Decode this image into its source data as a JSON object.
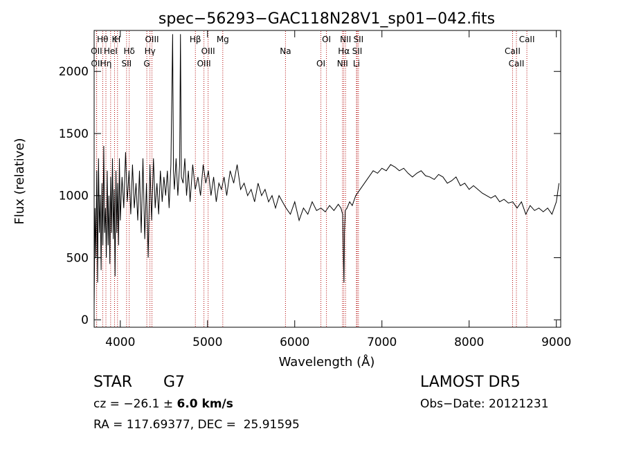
{
  "chart_data": {
    "type": "line",
    "title": "spec−56293−GAC118N28V1_sp01−042.fits",
    "xlabel": "Wavelength (Å)",
    "ylabel": "Flux (relative)",
    "xlim": [
      3700,
      9050
    ],
    "ylim": [
      -60,
      2330
    ],
    "xticks": [
      4000,
      5000,
      6000,
      7000,
      8000,
      9000
    ],
    "yticks": [
      0,
      500,
      1000,
      1500,
      2000
    ],
    "grid": false,
    "series": [
      {
        "x": [
          3700,
          3710,
          3720,
          3730,
          3740,
          3750,
          3760,
          3770,
          3780,
          3790,
          3800,
          3810,
          3820,
          3830,
          3840,
          3850,
          3860,
          3870,
          3880,
          3890,
          3900,
          3910,
          3920,
          3930,
          3940,
          3950,
          3960,
          3970,
          3980,
          3990,
          4000,
          4020,
          4040,
          4060,
          4080,
          4100,
          4120,
          4140,
          4160,
          4180,
          4200,
          4220,
          4240,
          4260,
          4280,
          4300,
          4320,
          4340,
          4360,
          4380,
          4400,
          4420,
          4440,
          4460,
          4480,
          4500,
          4520,
          4540,
          4560,
          4580,
          4600,
          4610,
          4620,
          4640,
          4660,
          4680,
          4690,
          4700,
          4720,
          4740,
          4760,
          4780,
          4800,
          4830,
          4860,
          4890,
          4920,
          4950,
          4980,
          5010,
          5040,
          5070,
          5100,
          5130,
          5160,
          5190,
          5220,
          5260,
          5300,
          5340,
          5380,
          5420,
          5460,
          5500,
          5540,
          5580,
          5620,
          5660,
          5700,
          5740,
          5780,
          5820,
          5860,
          5900,
          5950,
          6000,
          6050,
          6100,
          6150,
          6200,
          6250,
          6300,
          6350,
          6400,
          6450,
          6500,
          6530,
          6550,
          6560,
          6565,
          6570,
          6580,
          6600,
          6630,
          6660,
          6700,
          6750,
          6800,
          6850,
          6900,
          6950,
          7000,
          7050,
          7100,
          7150,
          7200,
          7250,
          7300,
          7350,
          7400,
          7450,
          7500,
          7550,
          7600,
          7650,
          7700,
          7750,
          7800,
          7850,
          7900,
          7950,
          8000,
          8050,
          8100,
          8150,
          8200,
          8250,
          8300,
          8350,
          8400,
          8450,
          8500,
          8550,
          8600,
          8650,
          8700,
          8750,
          8800,
          8850,
          8900,
          8950,
          9000,
          9030
        ],
        "y": [
          100,
          900,
          500,
          1200,
          300,
          1300,
          700,
          1000,
          400,
          1100,
          600,
          1400,
          700,
          900,
          500,
          1200,
          600,
          1000,
          450,
          1150,
          700,
          1300,
          650,
          1050,
          350,
          1200,
          700,
          1100,
          600,
          1300,
          800,
          1150,
          900,
          1350,
          950,
          1200,
          850,
          1250,
          900,
          1100,
          800,
          1200,
          700,
          1300,
          650,
          1100,
          500,
          1250,
          800,
          1300,
          900,
          1100,
          850,
          1200,
          950,
          1150,
          1000,
          1200,
          900,
          1250,
          2300,
          1200,
          1050,
          1300,
          1000,
          1250,
          2300,
          1150,
          1100,
          1300,
          1000,
          1200,
          950,
          1250,
          1050,
          1150,
          1000,
          1250,
          1100,
          1200,
          1000,
          1150,
          950,
          1100,
          1050,
          1150,
          1000,
          1200,
          1100,
          1250,
          1050,
          1100,
          1000,
          1050,
          950,
          1100,
          1000,
          1050,
          950,
          1000,
          900,
          1000,
          950,
          900,
          850,
          950,
          800,
          900,
          850,
          950,
          880,
          900,
          870,
          920,
          880,
          930,
          900,
          850,
          450,
          300,
          700,
          880,
          900,
          950,
          920,
          1000,
          1050,
          1100,
          1150,
          1200,
          1180,
          1220,
          1200,
          1250,
          1230,
          1200,
          1220,
          1180,
          1150,
          1180,
          1200,
          1160,
          1150,
          1130,
          1170,
          1150,
          1100,
          1120,
          1150,
          1080,
          1100,
          1050,
          1080,
          1050,
          1020,
          1000,
          980,
          1000,
          950,
          970,
          940,
          950,
          900,
          950,
          850,
          920,
          880,
          900,
          870,
          900,
          850,
          950,
          1100
        ]
      }
    ],
    "lines": [
      {
        "label": "Hθ",
        "x": 3798
      },
      {
        "label": "OII",
        "x": 3727
      },
      {
        "label": "OII",
        "x": 3729
      },
      {
        "label": "K",
        "x": 3934
      },
      {
        "label": "HeI",
        "x": 3889
      },
      {
        "label": "Hη",
        "x": 3835
      },
      {
        "label": "H",
        "x": 3968
      },
      {
        "label": "Hδ",
        "x": 4102
      },
      {
        "label": "SII",
        "x": 4072
      },
      {
        "label": "OIII",
        "x": 4363
      },
      {
        "label": "Hγ",
        "x": 4340
      },
      {
        "label": "G",
        "x": 4304
      },
      {
        "label": "Hβ",
        "x": 4861
      },
      {
        "label": "OIII",
        "x": 5007
      },
      {
        "label": "OIII",
        "x": 4959
      },
      {
        "label": "Mg",
        "x": 5175
      },
      {
        "label": "Na",
        "x": 5894
      },
      {
        "label": "OI",
        "x": 6300
      },
      {
        "label": "OI",
        "x": 6364
      },
      {
        "label": "Hα",
        "x": 6563
      },
      {
        "label": "NII",
        "x": 6548
      },
      {
        "label": "NII",
        "x": 6583
      },
      {
        "label": "SII",
        "x": 6716
      },
      {
        "label": "Li",
        "x": 6708
      },
      {
        "label": "SII",
        "x": 6731
      },
      {
        "label": "CaII",
        "x": 8498
      },
      {
        "label": "CaII",
        "x": 8542
      },
      {
        "label": "CaII",
        "x": 8662
      }
    ]
  },
  "info": {
    "class": "STAR",
    "subclass": "G7",
    "survey": "LAMOST DR5",
    "cz_prefix": "cz = −26.1 ± ",
    "cz_error": "6.0 km/s",
    "obs_date": "Obs−Date: 20121231",
    "coords": "RA = 117.69377, DEC =  25.91595"
  }
}
